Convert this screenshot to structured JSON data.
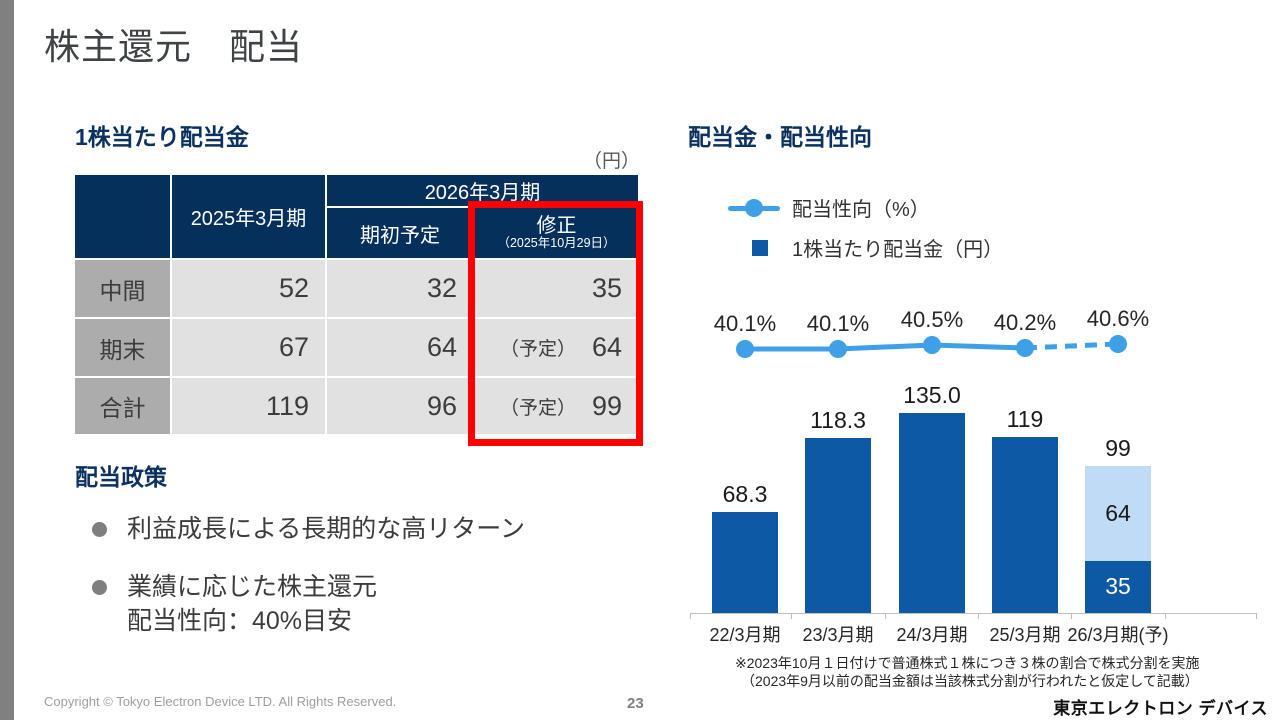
{
  "slide": {
    "title": "株主還元　配当",
    "page_number": "23",
    "copyright_text": "Copyright © Tokyo Electron Device LTD. All Rights Reserved.",
    "logo_text": "東京エレクトロン デバイス"
  },
  "colors": {
    "header_navy": "#05305C",
    "heading_navy": "#0B3160",
    "bar_dark": "#0D59A6",
    "bar_light": "#BFDBF5",
    "line_blue": "#3FA0E8",
    "highlight_red": "#FF0000",
    "row_label_gray": "#ACACAC",
    "cell_gray": "#E1E1E1",
    "sidebar_gray": "#808080"
  },
  "table": {
    "heading": "1株当たり配当金",
    "unit_label": "（円）",
    "header": {
      "fy2025": "2025年3月期",
      "fy2026_group": "2026年3月期",
      "initial": "期初予定",
      "revised": "修正",
      "revised_date": "（2025年10月29日）"
    },
    "rows": [
      {
        "label": "中間",
        "fy2025": "52",
        "initial": "32",
        "revised_prefix": "",
        "revised": "35"
      },
      {
        "label": "期末",
        "fy2025": "67",
        "initial": "64",
        "revised_prefix": "（予定）",
        "revised": "64"
      },
      {
        "label": "合計",
        "fy2025": "119",
        "initial": "96",
        "revised_prefix": "（予定）",
        "revised": "99"
      }
    ]
  },
  "policy": {
    "heading": "配当政策",
    "bullets": [
      {
        "line1": "利益成長による長期的な高リターン",
        "line2": ""
      },
      {
        "line1": "業績に応じた株主還元",
        "line2": "配当性向：40%目安"
      }
    ]
  },
  "chart": {
    "heading": "配当金・配当性向",
    "legend_line_label": "配当性向（%）",
    "legend_bar_label": "1株当たり配当金（円）",
    "footnote_line1": "※2023年10月１日付けで普通株式１株につき３株の割合で株式分割を実施",
    "footnote_line2": "（2023年9月以前の配当金額は当該株式分割が行われたと仮定して記載）"
  },
  "chart_data": {
    "type": "bar",
    "title": "配当金・配当性向",
    "categories": [
      "22/3月期",
      "23/3月期",
      "24/3月期",
      "25/3月期",
      "26/3月期(予)"
    ],
    "ylim": [
      0,
      150
    ],
    "legend_position": "top",
    "bar_series": {
      "name": "1株当たり配当金（円）",
      "bars": [
        {
          "total_label": "68.3",
          "segments": [
            {
              "value": 68.3,
              "style": "dark",
              "label": ""
            }
          ]
        },
        {
          "total_label": "118.3",
          "segments": [
            {
              "value": 118.3,
              "style": "dark",
              "label": ""
            }
          ]
        },
        {
          "total_label": "135.0",
          "segments": [
            {
              "value": 135.0,
              "style": "dark",
              "label": ""
            }
          ]
        },
        {
          "total_label": "119",
          "segments": [
            {
              "value": 119,
              "style": "dark",
              "label": ""
            }
          ]
        },
        {
          "total_label": "99",
          "segments": [
            {
              "value": 35,
              "style": "dark",
              "label": "35"
            },
            {
              "value": 64,
              "style": "light",
              "label": "64"
            }
          ]
        }
      ]
    },
    "line_series": {
      "name": "配当性向（%）",
      "values": [
        40.1,
        40.1,
        40.5,
        40.2,
        40.6
      ],
      "labels": [
        "40.1%",
        "40.1%",
        "40.5%",
        "40.2%",
        "40.6%"
      ],
      "dashed_from_index": 3
    }
  }
}
